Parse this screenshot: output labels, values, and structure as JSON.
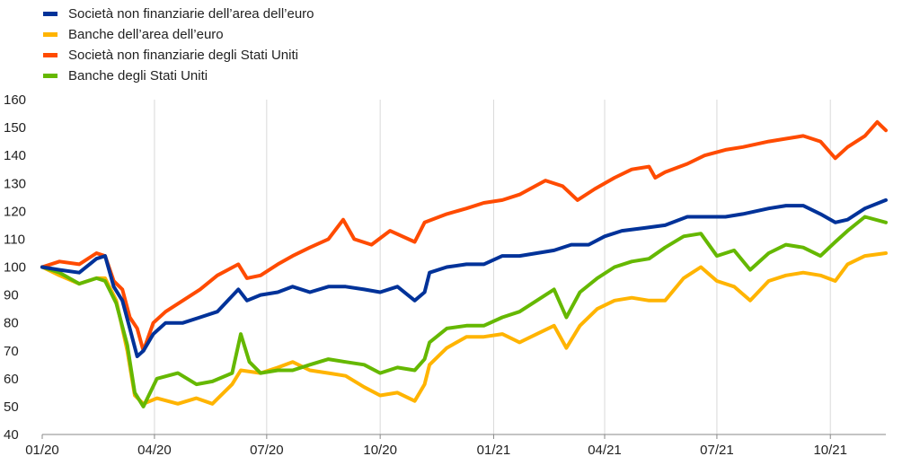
{
  "chart_data": {
    "type": "line",
    "title": "",
    "xlabel": "",
    "ylabel": "",
    "ylim": [
      40,
      160
    ],
    "yticks": [
      40,
      50,
      60,
      70,
      80,
      90,
      100,
      110,
      120,
      130,
      140,
      150,
      160
    ],
    "xlim": [
      "2020-01-01",
      "2021-11-15"
    ],
    "xticks": [
      {
        "date": "2020-01-01",
        "label": "01/20"
      },
      {
        "date": "2020-04-01",
        "label": "04/20"
      },
      {
        "date": "2020-07-01",
        "label": "07/20"
      },
      {
        "date": "2020-10-01",
        "label": "10/20"
      },
      {
        "date": "2021-01-01",
        "label": "01/21"
      },
      {
        "date": "2021-04-01",
        "label": "04/21"
      },
      {
        "date": "2021-07-01",
        "label": "07/21"
      },
      {
        "date": "2021-10-01",
        "label": "10/21"
      }
    ],
    "grid": {
      "vertical": true,
      "horizontal": false
    },
    "legend_position": "top-left",
    "series": [
      {
        "name": "Società non finanziarie dell’area dell’euro",
        "color": "#003299",
        "points": [
          [
            "2020-01-01",
            100
          ],
          [
            "2020-01-15",
            99
          ],
          [
            "2020-01-31",
            98
          ],
          [
            "2020-02-14",
            103
          ],
          [
            "2020-02-21",
            104
          ],
          [
            "2020-02-28",
            93
          ],
          [
            "2020-03-06",
            88
          ],
          [
            "2020-03-12",
            78
          ],
          [
            "2020-03-18",
            68
          ],
          [
            "2020-03-23",
            70
          ],
          [
            "2020-03-31",
            76
          ],
          [
            "2020-04-10",
            80
          ],
          [
            "2020-04-24",
            80
          ],
          [
            "2020-05-08",
            82
          ],
          [
            "2020-05-22",
            84
          ],
          [
            "2020-06-08",
            92
          ],
          [
            "2020-06-15",
            88
          ],
          [
            "2020-06-26",
            90
          ],
          [
            "2020-07-10",
            91
          ],
          [
            "2020-07-22",
            93
          ],
          [
            "2020-08-05",
            91
          ],
          [
            "2020-08-20",
            93
          ],
          [
            "2020-09-03",
            93
          ],
          [
            "2020-09-18",
            92
          ],
          [
            "2020-10-01",
            91
          ],
          [
            "2020-10-15",
            93
          ],
          [
            "2020-10-29",
            88
          ],
          [
            "2020-11-06",
            91
          ],
          [
            "2020-11-10",
            98
          ],
          [
            "2020-11-24",
            100
          ],
          [
            "2020-12-10",
            101
          ],
          [
            "2020-12-24",
            101
          ],
          [
            "2021-01-08",
            104
          ],
          [
            "2021-01-22",
            104
          ],
          [
            "2021-02-05",
            105
          ],
          [
            "2021-02-19",
            106
          ],
          [
            "2021-03-05",
            108
          ],
          [
            "2021-03-19",
            108
          ],
          [
            "2021-04-01",
            111
          ],
          [
            "2021-04-15",
            113
          ],
          [
            "2021-05-03",
            114
          ],
          [
            "2021-05-20",
            115
          ],
          [
            "2021-06-07",
            118
          ],
          [
            "2021-06-21",
            118
          ],
          [
            "2021-07-08",
            118
          ],
          [
            "2021-07-22",
            119
          ],
          [
            "2021-08-12",
            121
          ],
          [
            "2021-08-26",
            122
          ],
          [
            "2021-09-09",
            122
          ],
          [
            "2021-09-23",
            119
          ],
          [
            "2021-10-05",
            116
          ],
          [
            "2021-10-15",
            117
          ],
          [
            "2021-10-29",
            121
          ],
          [
            "2021-11-15",
            124
          ]
        ]
      },
      {
        "name": "Banche dell’area dell’euro",
        "color": "#FFB400",
        "points": [
          [
            "2020-01-01",
            100
          ],
          [
            "2020-01-15",
            97
          ],
          [
            "2020-01-31",
            94
          ],
          [
            "2020-02-14",
            96
          ],
          [
            "2020-02-21",
            96
          ],
          [
            "2020-03-01",
            88
          ],
          [
            "2020-03-10",
            70
          ],
          [
            "2020-03-16",
            54
          ],
          [
            "2020-03-23",
            51
          ],
          [
            "2020-04-03",
            53
          ],
          [
            "2020-04-20",
            51
          ],
          [
            "2020-05-05",
            53
          ],
          [
            "2020-05-18",
            51
          ],
          [
            "2020-06-03",
            58
          ],
          [
            "2020-06-10",
            63
          ],
          [
            "2020-06-26",
            62
          ],
          [
            "2020-07-10",
            64
          ],
          [
            "2020-07-22",
            66
          ],
          [
            "2020-08-05",
            63
          ],
          [
            "2020-08-20",
            62
          ],
          [
            "2020-09-03",
            61
          ],
          [
            "2020-09-18",
            57
          ],
          [
            "2020-10-01",
            54
          ],
          [
            "2020-10-15",
            55
          ],
          [
            "2020-10-29",
            52
          ],
          [
            "2020-11-06",
            58
          ],
          [
            "2020-11-10",
            65
          ],
          [
            "2020-11-24",
            71
          ],
          [
            "2020-12-10",
            75
          ],
          [
            "2020-12-24",
            75
          ],
          [
            "2021-01-08",
            76
          ],
          [
            "2021-01-22",
            73
          ],
          [
            "2021-02-05",
            76
          ],
          [
            "2021-02-19",
            79
          ],
          [
            "2021-03-01",
            71
          ],
          [
            "2021-03-12",
            79
          ],
          [
            "2021-03-26",
            85
          ],
          [
            "2021-04-09",
            88
          ],
          [
            "2021-04-23",
            89
          ],
          [
            "2021-05-07",
            88
          ],
          [
            "2021-05-20",
            88
          ],
          [
            "2021-06-04",
            96
          ],
          [
            "2021-06-18",
            100
          ],
          [
            "2021-07-01",
            95
          ],
          [
            "2021-07-15",
            93
          ],
          [
            "2021-07-28",
            88
          ],
          [
            "2021-08-12",
            95
          ],
          [
            "2021-08-26",
            97
          ],
          [
            "2021-09-09",
            98
          ],
          [
            "2021-09-23",
            97
          ],
          [
            "2021-10-05",
            95
          ],
          [
            "2021-10-15",
            101
          ],
          [
            "2021-10-29",
            104
          ],
          [
            "2021-11-15",
            105
          ]
        ]
      },
      {
        "name": "Società non finanziarie degli Stati Uniti",
        "color": "#FF4B00",
        "points": [
          [
            "2020-01-01",
            100
          ],
          [
            "2020-01-15",
            102
          ],
          [
            "2020-01-31",
            101
          ],
          [
            "2020-02-14",
            105
          ],
          [
            "2020-02-21",
            104
          ],
          [
            "2020-02-28",
            95
          ],
          [
            "2020-03-06",
            92
          ],
          [
            "2020-03-12",
            82
          ],
          [
            "2020-03-18",
            78
          ],
          [
            "2020-03-23",
            70
          ],
          [
            "2020-03-31",
            80
          ],
          [
            "2020-04-10",
            84
          ],
          [
            "2020-04-24",
            88
          ],
          [
            "2020-05-08",
            92
          ],
          [
            "2020-05-22",
            97
          ],
          [
            "2020-06-08",
            101
          ],
          [
            "2020-06-15",
            96
          ],
          [
            "2020-06-26",
            97
          ],
          [
            "2020-07-10",
            101
          ],
          [
            "2020-07-22",
            104
          ],
          [
            "2020-08-05",
            107
          ],
          [
            "2020-08-20",
            110
          ],
          [
            "2020-09-01",
            117
          ],
          [
            "2020-09-10",
            110
          ],
          [
            "2020-09-24",
            108
          ],
          [
            "2020-10-09",
            113
          ],
          [
            "2020-10-29",
            109
          ],
          [
            "2020-11-06",
            116
          ],
          [
            "2020-11-24",
            119
          ],
          [
            "2020-12-10",
            121
          ],
          [
            "2020-12-24",
            123
          ],
          [
            "2021-01-08",
            124
          ],
          [
            "2021-01-22",
            126
          ],
          [
            "2021-02-12",
            131
          ],
          [
            "2021-02-26",
            129
          ],
          [
            "2021-03-10",
            124
          ],
          [
            "2021-03-24",
            128
          ],
          [
            "2021-04-09",
            132
          ],
          [
            "2021-04-23",
            135
          ],
          [
            "2021-05-07",
            136
          ],
          [
            "2021-05-12",
            132
          ],
          [
            "2021-05-20",
            134
          ],
          [
            "2021-06-07",
            137
          ],
          [
            "2021-06-21",
            140
          ],
          [
            "2021-07-08",
            142
          ],
          [
            "2021-07-22",
            143
          ],
          [
            "2021-08-12",
            145
          ],
          [
            "2021-08-26",
            146
          ],
          [
            "2021-09-09",
            147
          ],
          [
            "2021-09-23",
            145
          ],
          [
            "2021-10-05",
            139
          ],
          [
            "2021-10-15",
            143
          ],
          [
            "2021-10-29",
            147
          ],
          [
            "2021-11-08",
            152
          ],
          [
            "2021-11-15",
            149
          ]
        ]
      },
      {
        "name": "Banche degli Stati Uniti",
        "color": "#65B800",
        "points": [
          [
            "2020-01-01",
            100
          ],
          [
            "2020-01-15",
            98
          ],
          [
            "2020-01-31",
            94
          ],
          [
            "2020-02-14",
            96
          ],
          [
            "2020-02-21",
            95
          ],
          [
            "2020-03-01",
            87
          ],
          [
            "2020-03-10",
            72
          ],
          [
            "2020-03-16",
            55
          ],
          [
            "2020-03-23",
            50
          ],
          [
            "2020-04-03",
            60
          ],
          [
            "2020-04-20",
            62
          ],
          [
            "2020-05-05",
            58
          ],
          [
            "2020-05-18",
            59
          ],
          [
            "2020-06-03",
            62
          ],
          [
            "2020-06-10",
            76
          ],
          [
            "2020-06-17",
            66
          ],
          [
            "2020-06-26",
            62
          ],
          [
            "2020-07-10",
            63
          ],
          [
            "2020-07-22",
            63
          ],
          [
            "2020-08-05",
            65
          ],
          [
            "2020-08-20",
            67
          ],
          [
            "2020-09-03",
            66
          ],
          [
            "2020-09-18",
            65
          ],
          [
            "2020-10-01",
            62
          ],
          [
            "2020-10-15",
            64
          ],
          [
            "2020-10-29",
            63
          ],
          [
            "2020-11-06",
            67
          ],
          [
            "2020-11-10",
            73
          ],
          [
            "2020-11-24",
            78
          ],
          [
            "2020-12-10",
            79
          ],
          [
            "2020-12-24",
            79
          ],
          [
            "2021-01-08",
            82
          ],
          [
            "2021-01-22",
            84
          ],
          [
            "2021-02-05",
            88
          ],
          [
            "2021-02-19",
            92
          ],
          [
            "2021-03-01",
            82
          ],
          [
            "2021-03-12",
            91
          ],
          [
            "2021-03-26",
            96
          ],
          [
            "2021-04-09",
            100
          ],
          [
            "2021-04-23",
            102
          ],
          [
            "2021-05-07",
            103
          ],
          [
            "2021-05-20",
            107
          ],
          [
            "2021-06-04",
            111
          ],
          [
            "2021-06-18",
            112
          ],
          [
            "2021-07-01",
            104
          ],
          [
            "2021-07-15",
            106
          ],
          [
            "2021-07-28",
            99
          ],
          [
            "2021-08-12",
            105
          ],
          [
            "2021-08-26",
            108
          ],
          [
            "2021-09-09",
            107
          ],
          [
            "2021-09-23",
            104
          ],
          [
            "2021-10-05",
            109
          ],
          [
            "2021-10-15",
            113
          ],
          [
            "2021-10-29",
            118
          ],
          [
            "2021-11-15",
            116
          ]
        ]
      }
    ]
  }
}
